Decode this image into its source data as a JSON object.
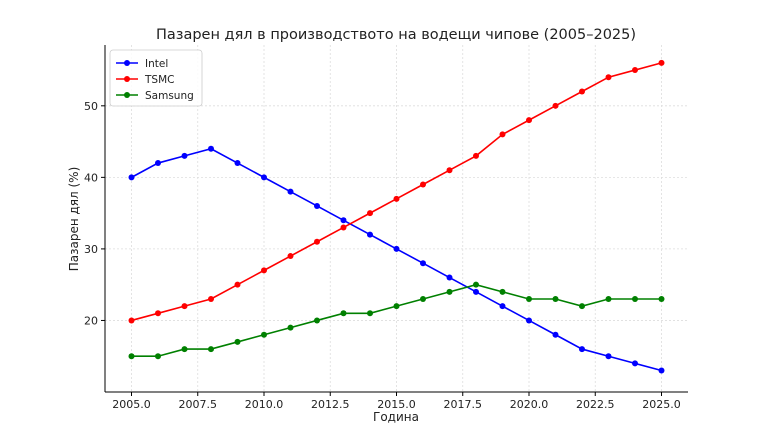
{
  "chart_data": {
    "type": "line",
    "title": "Пазарен дял в производството на водещи чипове (2005–2025)",
    "xlabel": "Година",
    "ylabel": "Пазарен дял (%)",
    "x": [
      2005,
      2006,
      2007,
      2008,
      2009,
      2010,
      2011,
      2012,
      2013,
      2014,
      2015,
      2016,
      2017,
      2018,
      2019,
      2020,
      2021,
      2022,
      2023,
      2024,
      2025
    ],
    "xlim": [
      2004,
      2026
    ],
    "ylim": [
      10,
      58.5
    ],
    "xticks": [
      2005,
      2007.5,
      2010,
      2012.5,
      2015,
      2017.5,
      2020,
      2022.5,
      2025
    ],
    "xtick_labels": [
      "2005.0",
      "2007.5",
      "2010.0",
      "2012.5",
      "2015.0",
      "2017.5",
      "2020.0",
      "2022.5",
      "2025.0"
    ],
    "yticks": [
      20,
      30,
      40,
      50
    ],
    "ytick_labels": [
      "20",
      "30",
      "40",
      "50"
    ],
    "grid": true,
    "legend_position": "top-left",
    "series": [
      {
        "name": "Intel",
        "color": "#0000ff",
        "values": [
          40,
          42,
          43,
          44,
          42,
          40,
          38,
          36,
          34,
          32,
          30,
          28,
          26,
          24,
          22,
          20,
          18,
          16,
          15,
          14,
          13
        ]
      },
      {
        "name": "TSMC",
        "color": "#ff0000",
        "values": [
          20,
          21,
          22,
          23,
          25,
          27,
          29,
          31,
          33,
          35,
          37,
          39,
          41,
          43,
          46,
          48,
          50,
          52,
          54,
          55,
          56
        ]
      },
      {
        "name": "Samsung",
        "color": "#008000",
        "values": [
          15,
          15,
          16,
          16,
          17,
          18,
          19,
          20,
          21,
          21,
          22,
          23,
          24,
          25,
          24,
          23,
          23,
          22,
          23,
          23,
          23
        ]
      }
    ]
  }
}
